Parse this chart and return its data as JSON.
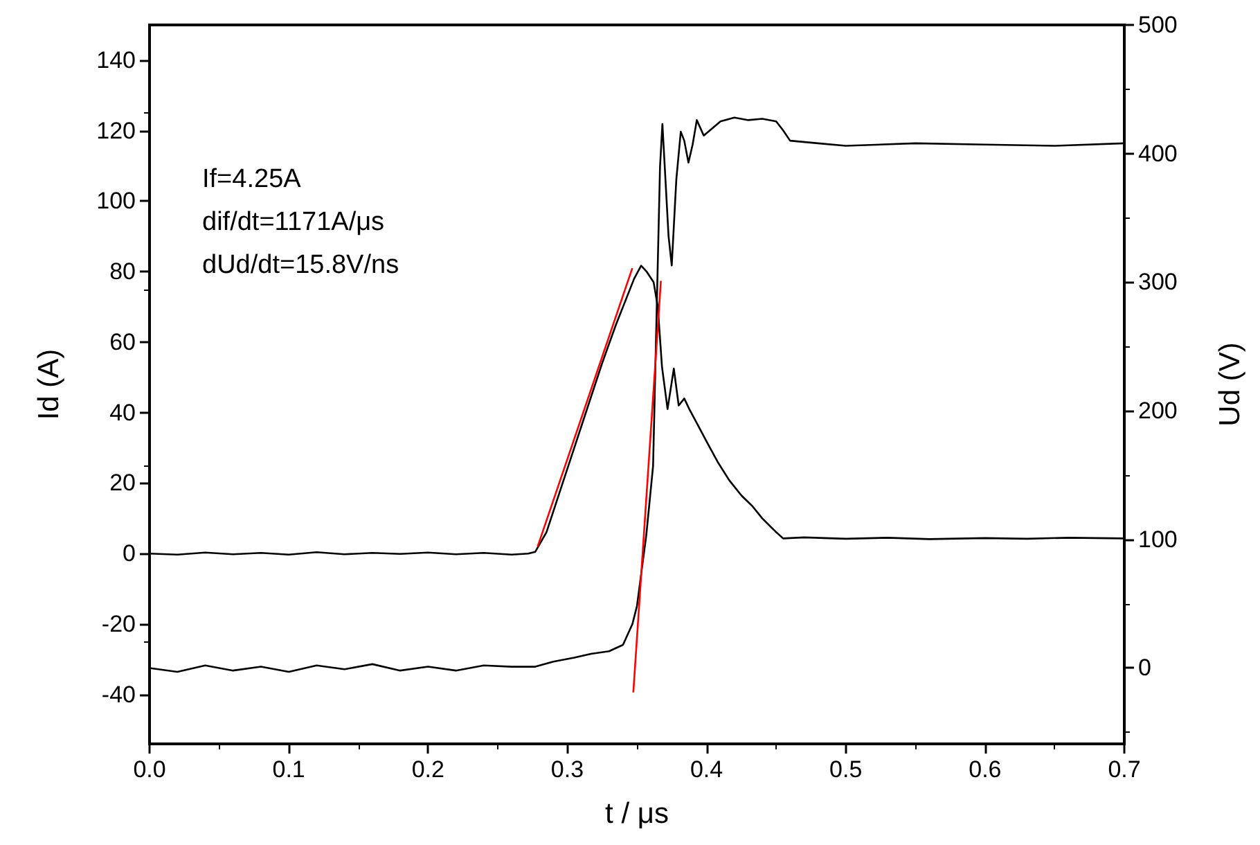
{
  "chart_data": {
    "type": "line",
    "xlabel": "t / μs",
    "ylabel": "Id (A)",
    "y2label": "Ud (V)",
    "annotations": [
      "If=4.25A",
      "dif/dt=1171A/μs",
      "dUd/dt=15.8V/ns"
    ],
    "xlim": [
      0,
      0.7
    ],
    "xticks": [
      {
        "value": 0,
        "label": "0.0"
      },
      0.1,
      0.2,
      0.3,
      0.4,
      0.5,
      0.6,
      0.7
    ],
    "ylim": [
      -54,
      150
    ],
    "yticks": [
      -40,
      -20,
      0,
      20,
      40,
      60,
      80,
      100,
      120,
      140
    ],
    "y2lim": [
      -59,
      500
    ],
    "y2ticks": [
      0,
      100,
      200,
      300,
      400,
      500
    ],
    "grid": false,
    "marker": "none",
    "line_style": "solid",
    "series": [
      {
        "color": "#000000",
        "x": [
          0,
          0.02,
          0.04,
          0.06,
          0.08,
          0.1,
          0.12,
          0.14,
          0.16,
          0.18,
          0.2,
          0.22,
          0.24,
          0.26,
          0.272,
          0.277,
          0.285,
          0.295,
          0.305,
          0.315,
          0.325,
          0.335,
          0.342,
          0.348,
          0.353,
          0.357,
          0.362,
          0.365,
          0.368,
          0.372,
          0.3765,
          0.38,
          0.384,
          0.3876,
          0.393,
          0.4,
          0.408,
          0.4163,
          0.425,
          0.4328,
          0.44,
          0.4494,
          0.455,
          0.47,
          0.5,
          0.53,
          0.56,
          0.6,
          0.63,
          0.66,
          0.7
        ],
        "values": [
          0,
          -0.3,
          0.3,
          -0.2,
          0.2,
          -0.3,
          0.4,
          -0.2,
          0.2,
          -0.1,
          0.3,
          -0.2,
          0.2,
          -0.3,
          0,
          0.5,
          6,
          18,
          30,
          42,
          54,
          65,
          72,
          78,
          81.7,
          80,
          77,
          70,
          53,
          41,
          52.5,
          42,
          44,
          41,
          37,
          31.8,
          26,
          20.8,
          16.5,
          13.5,
          10,
          6.3,
          4.3,
          4.6,
          4.2,
          4.5,
          4.1,
          4.4,
          4.2,
          4.5,
          4.3
        ]
      },
      {
        "color": "#000000",
        "axis": "y2",
        "x": [
          0,
          0.02,
          0.04,
          0.06,
          0.08,
          0.1,
          0.12,
          0.14,
          0.16,
          0.18,
          0.2,
          0.22,
          0.24,
          0.26,
          0.277,
          0.29,
          0.305,
          0.317,
          0.33,
          0.34,
          0.3467,
          0.35,
          0.3567,
          0.3616,
          0.3643,
          0.3666,
          0.3683,
          0.3727,
          0.375,
          0.3783,
          0.3815,
          0.384,
          0.387,
          0.39,
          0.393,
          0.398,
          0.41,
          0.42,
          0.43,
          0.44,
          0.45,
          0.455,
          0.46,
          0.48,
          0.5,
          0.55,
          0.6,
          0.65,
          0.7
        ],
        "values": [
          0,
          -3,
          2,
          -2,
          1,
          -3,
          2,
          -1,
          3,
          -2,
          1,
          -2,
          2,
          1,
          1,
          5,
          8,
          11,
          13,
          18,
          34,
          48,
          103,
          157,
          283,
          390,
          423,
          336,
          313,
          380,
          417,
          410,
          393,
          407,
          426,
          414,
          425,
          428,
          426,
          427,
          425,
          418,
          410,
          408,
          406,
          408,
          407,
          406,
          408
        ]
      },
      {
        "color": "#ff0000",
        "x": [
          0.2787,
          0.3467
        ],
        "values": [
          2,
          81
        ]
      },
      {
        "color": "#ff0000",
        "axis": "y2",
        "x": [
          0.3474,
          0.3672
        ],
        "values": [
          -19,
          301
        ]
      }
    ]
  }
}
